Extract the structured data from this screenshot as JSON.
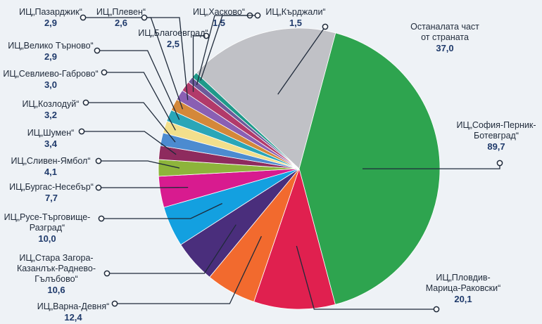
{
  "chart_data": {
    "type": "pie",
    "title": "",
    "slices": [
      {
        "lines": [
          "ИЦ„София-Перник-",
          "Ботевград“"
        ],
        "value": 89.7,
        "value_label": "89,7",
        "color": "#2ea44f"
      },
      {
        "lines": [
          "ИЦ„Пловдив-",
          "Марица-Раковски“"
        ],
        "value": 20.1,
        "value_label": "20,1",
        "color": "#e0204f"
      },
      {
        "lines": [
          "ИЦ„Варна-Девня“"
        ],
        "value": 12.4,
        "value_label": "12,4",
        "color": "#f26a2e"
      },
      {
        "lines": [
          "ИЦ„Стара Загора-",
          "Казанлък-Раднево-",
          "Гълъбово“"
        ],
        "value": 10.6,
        "value_label": "10,6",
        "color": "#4a2e7c"
      },
      {
        "lines": [
          "ИЦ„Русе-Търговище-",
          "Разград“"
        ],
        "value": 10.0,
        "value_label": "10,0",
        "color": "#13a0e0"
      },
      {
        "lines": [
          "ИЦ„Бургас-Несебър“"
        ],
        "value": 7.7,
        "value_label": "7,7",
        "color": "#d81b8f"
      },
      {
        "lines": [
          "ИЦ„Сливен-Ямбол“"
        ],
        "value": 4.1,
        "value_label": "4,1",
        "color": "#8db43b"
      },
      {
        "lines": [
          "ИЦ„Шумен“"
        ],
        "value": 3.4,
        "value_label": "3,4",
        "color": "#8e2b5e"
      },
      {
        "lines": [
          "ИЦ„Козлодуй“"
        ],
        "value": 3.2,
        "value_label": "3,2",
        "color": "#4c8bd0"
      },
      {
        "lines": [
          "ИЦ„Севлиево-Габрово“"
        ],
        "value": 3.0,
        "value_label": "3,0",
        "color": "#f2df8c"
      },
      {
        "lines": [
          "ИЦ„Велико Търново“"
        ],
        "value": 2.9,
        "value_label": "2,9",
        "color": "#2aa6b8"
      },
      {
        "lines": [
          "ИЦ„Пазарджик“"
        ],
        "value": 2.9,
        "value_label": "2,9",
        "color": "#d4883a"
      },
      {
        "lines": [
          "ИЦ„Плевен“"
        ],
        "value": 2.6,
        "value_label": "2,6",
        "color": "#8a5fb3"
      },
      {
        "lines": [
          "ИЦ„Благоевград“"
        ],
        "value": 2.5,
        "value_label": "2,5",
        "color": "#b23a6a"
      },
      {
        "lines": [
          "ИЦ„Хасково“"
        ],
        "value": 1.5,
        "value_label": "1,5",
        "color": "#6c5a9a"
      },
      {
        "lines": [
          "ИЦ„Кърджали“"
        ],
        "value": 1.5,
        "value_label": "1,5",
        "color": "#1f9a8a"
      },
      {
        "lines": [
          "Останалата част",
          "от страната"
        ],
        "value": 37.0,
        "value_label": "37,0",
        "color": "#c0c1c6"
      }
    ]
  }
}
